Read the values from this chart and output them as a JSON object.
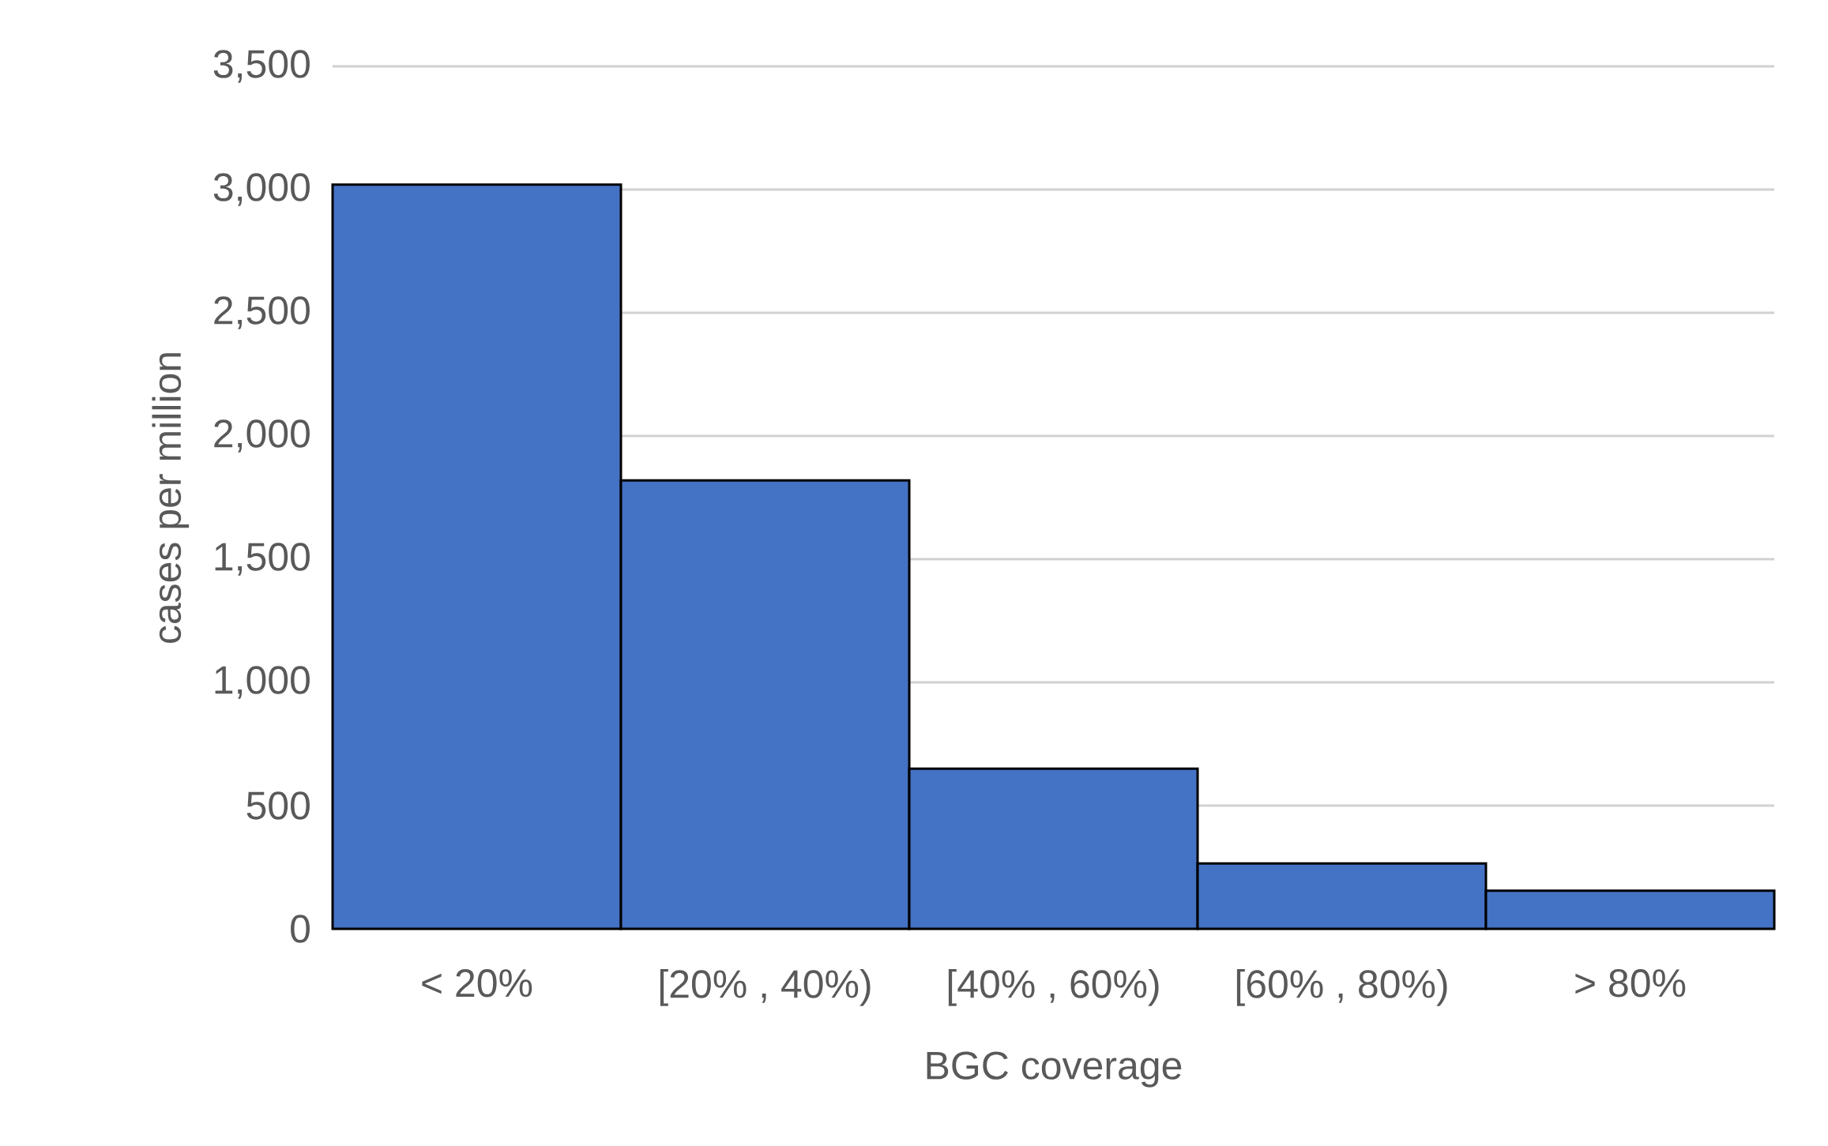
{
  "chart_data": {
    "type": "bar",
    "xlabel": "BGC coverage",
    "ylabel": "cases per million",
    "categories": [
      "< 20%",
      "[20% , 40%)",
      "[40% , 60%)",
      "[60% , 80%)",
      "> 80%"
    ],
    "values": [
      3020,
      1820,
      650,
      265,
      155
    ],
    "color": "#4472c4",
    "ylim": [
      0,
      3500
    ],
    "yticks": [
      0,
      500,
      {
        "value": 1000,
        "label": "1,000"
      },
      {
        "value": 1500,
        "label": "1,500"
      },
      {
        "value": 2000,
        "label": "2,000"
      },
      {
        "value": 2500,
        "label": "2,500"
      },
      {
        "value": 3000,
        "label": "3,000"
      },
      {
        "value": 3500,
        "label": "3,500"
      }
    ],
    "grid": "y"
  }
}
